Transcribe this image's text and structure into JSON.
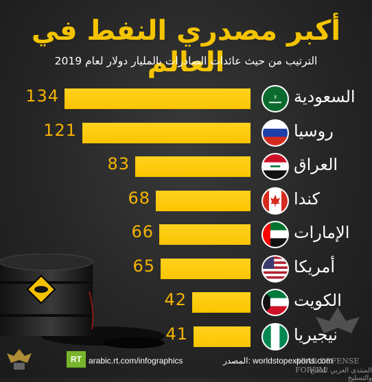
{
  "title": "أكبر مصدري النفط في العالم",
  "subtitle": "الترتيب من حيث عائدات الصادرات بالمليار دولار لعام 2019",
  "chart_data": {
    "type": "bar",
    "orientation": "horizontal",
    "title": "أكبر مصدري النفط في العالم",
    "subtitle": "الترتيب من حيث عائدات الصادرات بالمليار دولار لعام 2019",
    "categories": [
      "السعودية",
      "روسيا",
      "العراق",
      "كندا",
      "الإمارات",
      "أمريكا",
      "الكويت",
      "نيجيريا"
    ],
    "values": [
      134,
      121,
      83,
      68,
      66,
      65,
      42,
      41
    ],
    "value_labels": [
      "134",
      "121",
      "83",
      "68",
      "66",
      "65",
      "42",
      "41"
    ],
    "xlim": [
      0,
      134
    ],
    "grid": false,
    "legend": "none",
    "colors": {
      "bar": "#fbc400",
      "value_text": "#f5b400",
      "title": "#f5c400"
    }
  },
  "flags": [
    "saudi-arabia-flag-icon",
    "russia-flag-icon",
    "iraq-flag-icon",
    "canada-flag-icon",
    "uae-flag-icon",
    "usa-flag-icon",
    "kuwait-flag-icon",
    "nigeria-flag-icon"
  ],
  "footer": {
    "rt_logo": "RT",
    "source_url": "arabic.rt.com/infographics",
    "source_label": "المصدر: worldstopexports.com"
  },
  "watermark": {
    "line1": "ARAB DEFENSE FORUM",
    "line2": "المنتدى العربي للدفاع والتسليح"
  }
}
